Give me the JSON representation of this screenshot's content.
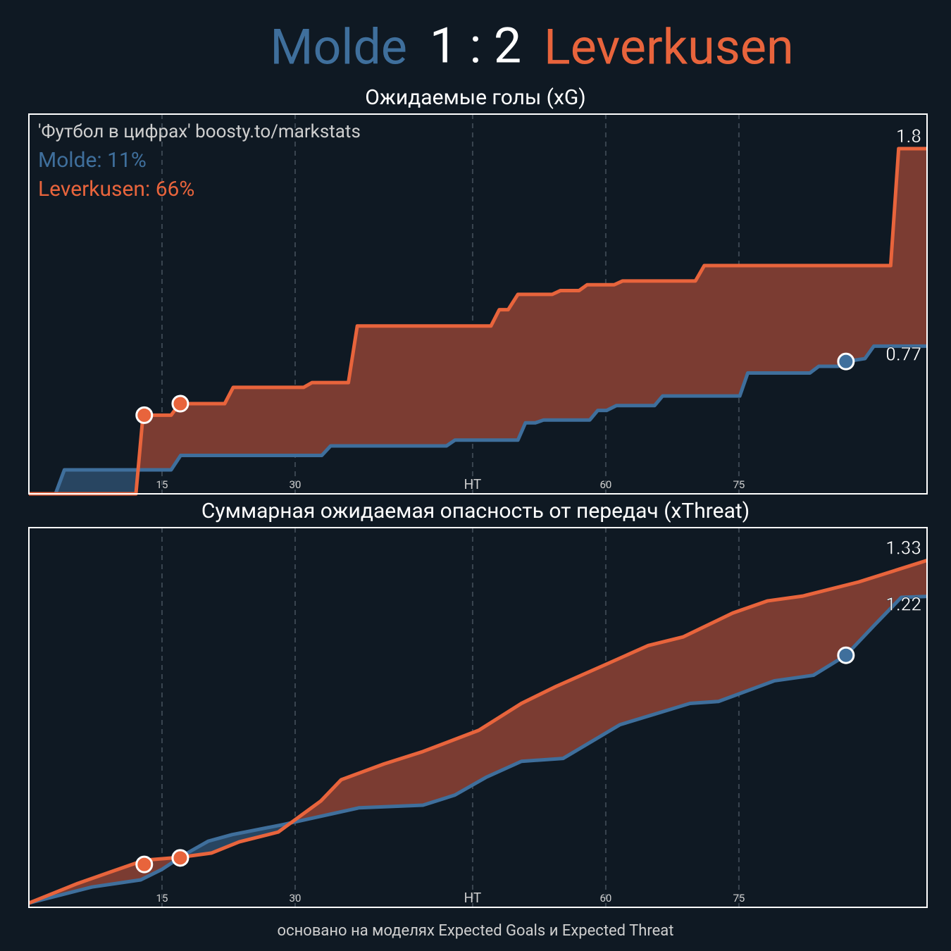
{
  "header": {
    "score": "1 : 2"
  },
  "footer": "основано на моделях Expected Goals и Expected Threat",
  "chart_data": [
    {
      "type": "line",
      "title": "Ожидаемые голы (xG)",
      "annotations": [
        {
          "text": "'Футбол в цифрах' boosty.to/markstats",
          "color": "#cfcfcf"
        },
        {
          "text": "Molde: 11%",
          "color": "#3f6f9c"
        },
        {
          "text": "Leverkusen: 66%",
          "color": "#e8643c"
        }
      ],
      "xlim": [
        0,
        101.2
      ],
      "ylim": [
        0,
        1.98
      ],
      "xticks": [
        15,
        30,
        {
          "value": 50,
          "label": "HT"
        },
        {
          "value": 65,
          "label": "60"
        },
        {
          "value": 80,
          "label": "75"
        }
      ],
      "grid": true,
      "series": [
        {
          "name": "Molde",
          "color": "#3f6f9c",
          "fill": "#2b4a68",
          "x": [
            0,
            3.0,
            4.0,
            16.03,
            17.1,
            33.0,
            34.0,
            47.06,
            48.0,
            55.1,
            55.95,
            57.06,
            58.0,
            63.2,
            64.1,
            65.1,
            66.2,
            70.5,
            71.4,
            80.1,
            81.0,
            88.0,
            89.0,
            91.2,
            92.06,
            94.2,
            95.2,
            101.2
          ],
          "values": [
            0,
            0,
            0.125,
            0.125,
            0.2,
            0.2,
            0.25,
            0.25,
            0.28,
            0.28,
            0.37,
            0.37,
            0.385,
            0.385,
            0.435,
            0.435,
            0.46,
            0.46,
            0.51,
            0.51,
            0.63,
            0.63,
            0.665,
            0.665,
            0.69,
            0.705,
            0.77,
            0.77
          ],
          "goals_x": [
            92.06
          ],
          "goals_values": [
            0.69
          ],
          "end_label": 0.77
        },
        {
          "name": "Leverkusen",
          "color": "#e8643c",
          "fill": "#7b3c32",
          "x": [
            0,
            12.06,
            12.86,
            16.03,
            16.98,
            22.06,
            23.02,
            30.95,
            31.9,
            36.0,
            37.0,
            52.06,
            53.0,
            54.0,
            55.1,
            58.97,
            59.9,
            62.0,
            62.9,
            65.95,
            66.9,
            75.1,
            76.1,
            97.1,
            98.0,
            101.2
          ],
          "values": [
            0,
            0,
            0.41,
            0.41,
            0.47,
            0.47,
            0.555,
            0.555,
            0.58,
            0.58,
            0.875,
            0.875,
            0.96,
            0.96,
            1.04,
            1.04,
            1.06,
            1.06,
            1.09,
            1.09,
            1.11,
            1.11,
            1.19,
            1.19,
            1.8,
            1.8
          ],
          "goals_x": [
            13.0,
            17.06
          ],
          "goals_values": [
            0.41,
            0.47
          ],
          "end_label": 1.8
        }
      ]
    },
    {
      "type": "line",
      "title": "Суммарная ожидаемая опасность от передач (xThreat)",
      "xlim": [
        0,
        101.2
      ],
      "ylim": [
        0.27,
        1.43
      ],
      "xticks": [
        15,
        30,
        {
          "value": 50,
          "label": "HT"
        },
        {
          "value": 65,
          "label": "60"
        },
        {
          "value": 80,
          "label": "75"
        }
      ],
      "grid": true,
      "series": [
        {
          "color": "#3f6f9c",
          "fill": "#2b4a68",
          "x": [
            0,
            7.1,
            12.6,
            15.0,
            17.4,
            20.2,
            22.9,
            28.5,
            37.2,
            44.4,
            48.0,
            51.5,
            55.5,
            60.2,
            66.6,
            74.5,
            77.7,
            84.0,
            88.4,
            92.06,
            95.2,
            98.3,
            101.2
          ],
          "values": [
            0.283,
            0.332,
            0.354,
            0.386,
            0.429,
            0.472,
            0.492,
            0.522,
            0.574,
            0.582,
            0.613,
            0.667,
            0.716,
            0.725,
            0.828,
            0.893,
            0.899,
            0.962,
            0.979,
            1.04,
            1.13,
            1.217,
            1.22
          ],
          "goals_x": [
            92.06
          ],
          "goals_values": [
            1.04
          ],
          "end_label": 1.22
        },
        {
          "color": "#e8643c",
          "fill": "#7b3c32",
          "x": [
            0,
            5.5,
            9.4,
            13.0,
            17.1,
            20.6,
            23.7,
            28.1,
            32.9,
            35.2,
            40.0,
            44.4,
            50.7,
            55.5,
            59.4,
            65.0,
            69.8,
            73.7,
            79.3,
            83.2,
            87.2,
            93.5,
            101.2
          ],
          "values": [
            0.283,
            0.343,
            0.38,
            0.414,
            0.423,
            0.436,
            0.47,
            0.5,
            0.595,
            0.66,
            0.708,
            0.746,
            0.811,
            0.893,
            0.945,
            1.012,
            1.07,
            1.096,
            1.169,
            1.206,
            1.221,
            1.264,
            1.33
          ],
          "goals_x": [
            13.0,
            17.06
          ],
          "goals_values": [
            0.401,
            0.421
          ],
          "end_label": 1.33
        }
      ]
    }
  ]
}
